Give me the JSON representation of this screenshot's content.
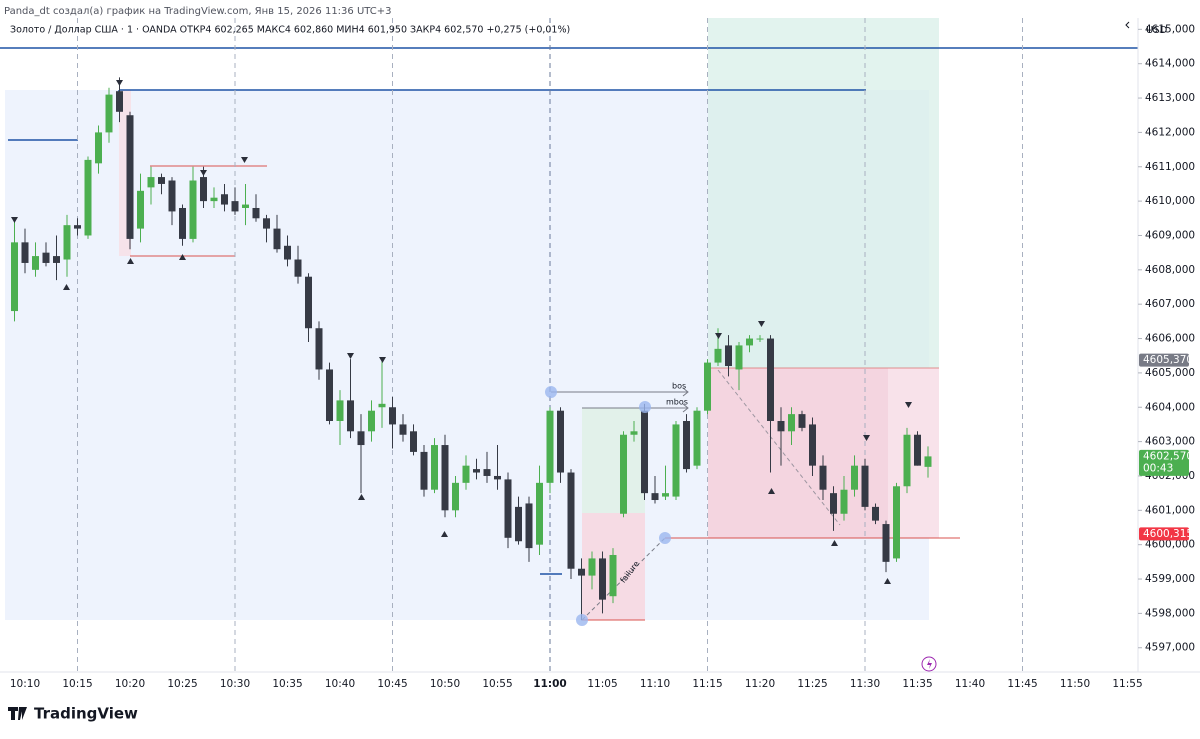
{
  "header": "Panda_dt создал(а) график на TradingView.com, Янв 15, 2026 11:36 UTC+3",
  "logo": "TradingView",
  "chart_data": {
    "type": "candlestick",
    "legend": "Золото / Доллар США · 1 · OANDA  ОТКР4 602,265  МАКС4 602,860  МИН4 601,950  ЗАКР4 602,570  +0,275 (+0,01%)",
    "currency": "USD",
    "x": [
      "10:09",
      "10:10",
      "10:11",
      "10:12",
      "10:13",
      "10:14",
      "10:15",
      "10:16",
      "10:17",
      "10:18",
      "10:19",
      "10:20",
      "10:21",
      "10:22",
      "10:23",
      "10:24",
      "10:25",
      "10:26",
      "10:27",
      "10:28",
      "10:29",
      "10:30",
      "10:31",
      "10:32",
      "10:33",
      "10:34",
      "10:35",
      "10:36",
      "10:37",
      "10:38",
      "10:39",
      "10:40",
      "10:41",
      "10:42",
      "10:43",
      "10:44",
      "10:45",
      "10:46",
      "10:47",
      "10:48",
      "10:49",
      "10:50",
      "10:51",
      "10:52",
      "10:53",
      "10:54",
      "10:55",
      "10:56",
      "10:57",
      "10:58",
      "10:59",
      "11:00",
      "11:01",
      "11:02",
      "11:03",
      "11:04",
      "11:05",
      "11:06",
      "11:07",
      "11:08",
      "11:09",
      "11:10",
      "11:11",
      "11:12",
      "11:13",
      "11:14",
      "11:15",
      "11:16",
      "11:17",
      "11:18",
      "11:19",
      "11:20",
      "11:21",
      "11:22",
      "11:23",
      "11:24",
      "11:25",
      "11:26",
      "11:27",
      "11:28",
      "11:29",
      "11:30",
      "11:31",
      "11:32",
      "11:33",
      "11:34",
      "11:35",
      "11:36"
    ],
    "open": [
      4606.8,
      4608.8,
      4608.0,
      4608.5,
      4608.4,
      4608.3,
      4609.3,
      4609.0,
      4611.1,
      4612.0,
      4613.2,
      4612.5,
      4609.2,
      4610.4,
      4610.7,
      4610.6,
      4609.8,
      4608.9,
      4610.7,
      4610.0,
      4610.2,
      4610.0,
      4609.8,
      4609.8,
      4609.5,
      4609.2,
      4608.7,
      4608.3,
      4607.8,
      4606.3,
      4605.1,
      4603.6,
      4604.2,
      4603.3,
      4603.3,
      4604.0,
      4604.0,
      4603.5,
      4603.3,
      4602.7,
      4601.6,
      4602.9,
      4601.0,
      4601.8,
      4602.2,
      4602.2,
      4602.0,
      4601.9,
      4601.1,
      4601.2,
      4600.0,
      4601.8,
      4603.9,
      4602.1,
      4599.3,
      4599.1,
      4599.6,
      4598.5,
      4600.9,
      4603.2,
      4603.9,
      4601.5,
      4601.4,
      4601.4,
      4603.6,
      4602.3,
      4603.9,
      4605.3,
      4605.8,
      4605.1,
      4605.8,
      4606.0,
      4606.0,
      4603.6,
      4603.3,
      4603.8,
      4603.5,
      4602.3,
      4601.5,
      4600.9,
      4601.6,
      4602.3,
      4601.1,
      4600.6,
      4599.6,
      4601.7,
      4603.2,
      4602.265
    ],
    "high": [
      4609.5,
      4609.2,
      4608.8,
      4608.8,
      4609.0,
      4609.6,
      4609.5,
      4611.3,
      4612.2,
      4613.3,
      4613.6,
      4612.6,
      4610.8,
      4611.0,
      4610.8,
      4610.7,
      4609.9,
      4611.0,
      4611.0,
      4610.4,
      4610.5,
      4610.4,
      4610.5,
      4610.2,
      4609.6,
      4609.6,
      4609.0,
      4608.7,
      4607.9,
      4606.5,
      4605.3,
      4604.5,
      4605.4,
      4603.8,
      4604.2,
      4605.4,
      4604.3,
      4603.8,
      4603.5,
      4602.9,
      4603.1,
      4603.2,
      4602.0,
      4602.6,
      4602.5,
      4602.7,
      4602.9,
      4602.1,
      4601.4,
      4601.4,
      4602.3,
      4604.0,
      4604.0,
      4602.2,
      4599.6,
      4599.8,
      4599.8,
      4599.9,
      4603.3,
      4603.6,
      4604.1,
      4602.0,
      4602.3,
      4603.6,
      4603.8,
      4604.0,
      4605.4,
      4606.3,
      4606.1,
      4605.9,
      4606.1,
      4606.1,
      4606.1,
      4604.0,
      4604.0,
      4603.9,
      4603.7,
      4602.6,
      4601.7,
      4602.0,
      4602.6,
      4602.5,
      4601.2,
      4600.7,
      4601.8,
      4603.4,
      4603.3,
      4602.86
    ],
    "low": [
      4606.5,
      4607.9,
      4607.8,
      4608.1,
      4607.7,
      4607.8,
      4609.0,
      4608.9,
      4610.8,
      4611.7,
      4612.3,
      4608.6,
      4608.8,
      4609.9,
      4610.2,
      4609.3,
      4608.7,
      4608.8,
      4609.8,
      4609.8,
      4609.7,
      4609.6,
      4609.3,
      4609.4,
      4608.8,
      4608.5,
      4608.1,
      4607.6,
      4605.9,
      4604.8,
      4603.5,
      4602.9,
      4603.1,
      4601.5,
      4603.0,
      4603.4,
      4602.8,
      4603.0,
      4602.6,
      4601.4,
      4601.5,
      4600.8,
      4600.8,
      4601.6,
      4601.9,
      4601.8,
      4601.6,
      4599.9,
      4600.0,
      4599.5,
      4599.7,
      4601.5,
      4601.8,
      4599.0,
      4597.8,
      4598.7,
      4598.0,
      4598.3,
      4600.8,
      4603.0,
      4601.3,
      4601.2,
      4601.3,
      4601.3,
      4602.1,
      4602.2,
      4603.8,
      4605.2,
      4604.9,
      4604.5,
      4605.6,
      4605.9,
      4602.1,
      4602.3,
      4602.9,
      4603.3,
      4602.0,
      4601.3,
      4600.4,
      4600.7,
      4601.4,
      4601.0,
      4600.6,
      4599.2,
      4599.5,
      4601.5,
      4602.3,
      4601.95
    ],
    "close": [
      4608.8,
      4608.2,
      4608.4,
      4608.2,
      4608.2,
      4609.3,
      4609.2,
      4611.2,
      4612.0,
      4613.1,
      4612.6,
      4608.9,
      4610.3,
      4610.7,
      4610.5,
      4609.7,
      4608.9,
      4610.6,
      4610.0,
      4610.1,
      4609.9,
      4609.7,
      4609.9,
      4609.5,
      4609.2,
      4608.6,
      4608.3,
      4607.8,
      4606.3,
      4605.1,
      4603.6,
      4604.2,
      4603.3,
      4602.9,
      4603.9,
      4604.1,
      4603.5,
      4603.2,
      4602.7,
      4601.6,
      4602.9,
      4601.0,
      4601.8,
      4602.3,
      4602.1,
      4602.0,
      4601.9,
      4600.2,
      4600.1,
      4599.9,
      4601.8,
      4603.9,
      4602.1,
      4599.3,
      4599.1,
      4599.6,
      4598.4,
      4599.7,
      4603.2,
      4603.3,
      4601.5,
      4601.3,
      4601.5,
      4603.5,
      4602.2,
      4603.9,
      4605.3,
      4605.7,
      4605.2,
      4605.8,
      4606.0,
      4606.0,
      4603.6,
      4603.3,
      4603.8,
      4603.4,
      4602.3,
      4601.6,
      4600.9,
      4601.6,
      4602.3,
      4601.1,
      4600.7,
      4599.5,
      4601.7,
      4603.2,
      4602.3,
      4602.57
    ],
    "up_color": "#4caf50",
    "down_color": "#363a45",
    "xlim": [
      "10:08",
      "11:56"
    ],
    "xticks": [
      "10:10",
      "10:15",
      "10:20",
      "10:25",
      "10:30",
      "10:35",
      "10:40",
      "10:45",
      "10:50",
      "10:55",
      "11:00",
      "11:05",
      "11:10",
      "11:15",
      "11:20",
      "11:25",
      "11:30",
      "11:35",
      "11:40",
      "11:45",
      "11:50",
      "11:55"
    ],
    "ylim": [
      4596.294,
      4615.33
    ],
    "yticks": [
      {
        "value": 4597,
        "label": "4597,000"
      },
      {
        "value": 4598,
        "label": "4598,000"
      },
      {
        "value": 4599,
        "label": "4599,000"
      },
      {
        "value": 4600,
        "label": "4600,000"
      },
      {
        "value": 4601,
        "label": "4601,000"
      },
      {
        "value": 4602,
        "label": "4602,000"
      },
      {
        "value": 4603,
        "label": "4603,000"
      },
      {
        "value": 4604,
        "label": "4604,000"
      },
      {
        "value": 4605,
        "label": "4605,000"
      },
      {
        "value": 4606,
        "label": "4606,000"
      },
      {
        "value": 4607,
        "label": "4607,000"
      },
      {
        "value": 4608,
        "label": "4608,000"
      },
      {
        "value": 4609,
        "label": "4609,000"
      },
      {
        "value": 4610,
        "label": "4610,000"
      },
      {
        "value": 4611,
        "label": "4611,000"
      },
      {
        "value": 4612,
        "label": "4612,000"
      },
      {
        "value": 4613,
        "label": "4613,000"
      },
      {
        "value": 4614,
        "label": "4614,000"
      },
      {
        "value": 4615,
        "label": "4615,000"
      }
    ],
    "price_tags": [
      {
        "value": 4605.37,
        "label": "4605,370",
        "color": "#787b86"
      },
      {
        "value": 4602.57,
        "label": "4602,570",
        "color": "#4caf50",
        "timer": "00:43"
      },
      {
        "value": 4600.315,
        "label": "4600,315",
        "color": "#f23645"
      }
    ],
    "annotations": [
      "bos",
      "mbos",
      "failure"
    ]
  }
}
